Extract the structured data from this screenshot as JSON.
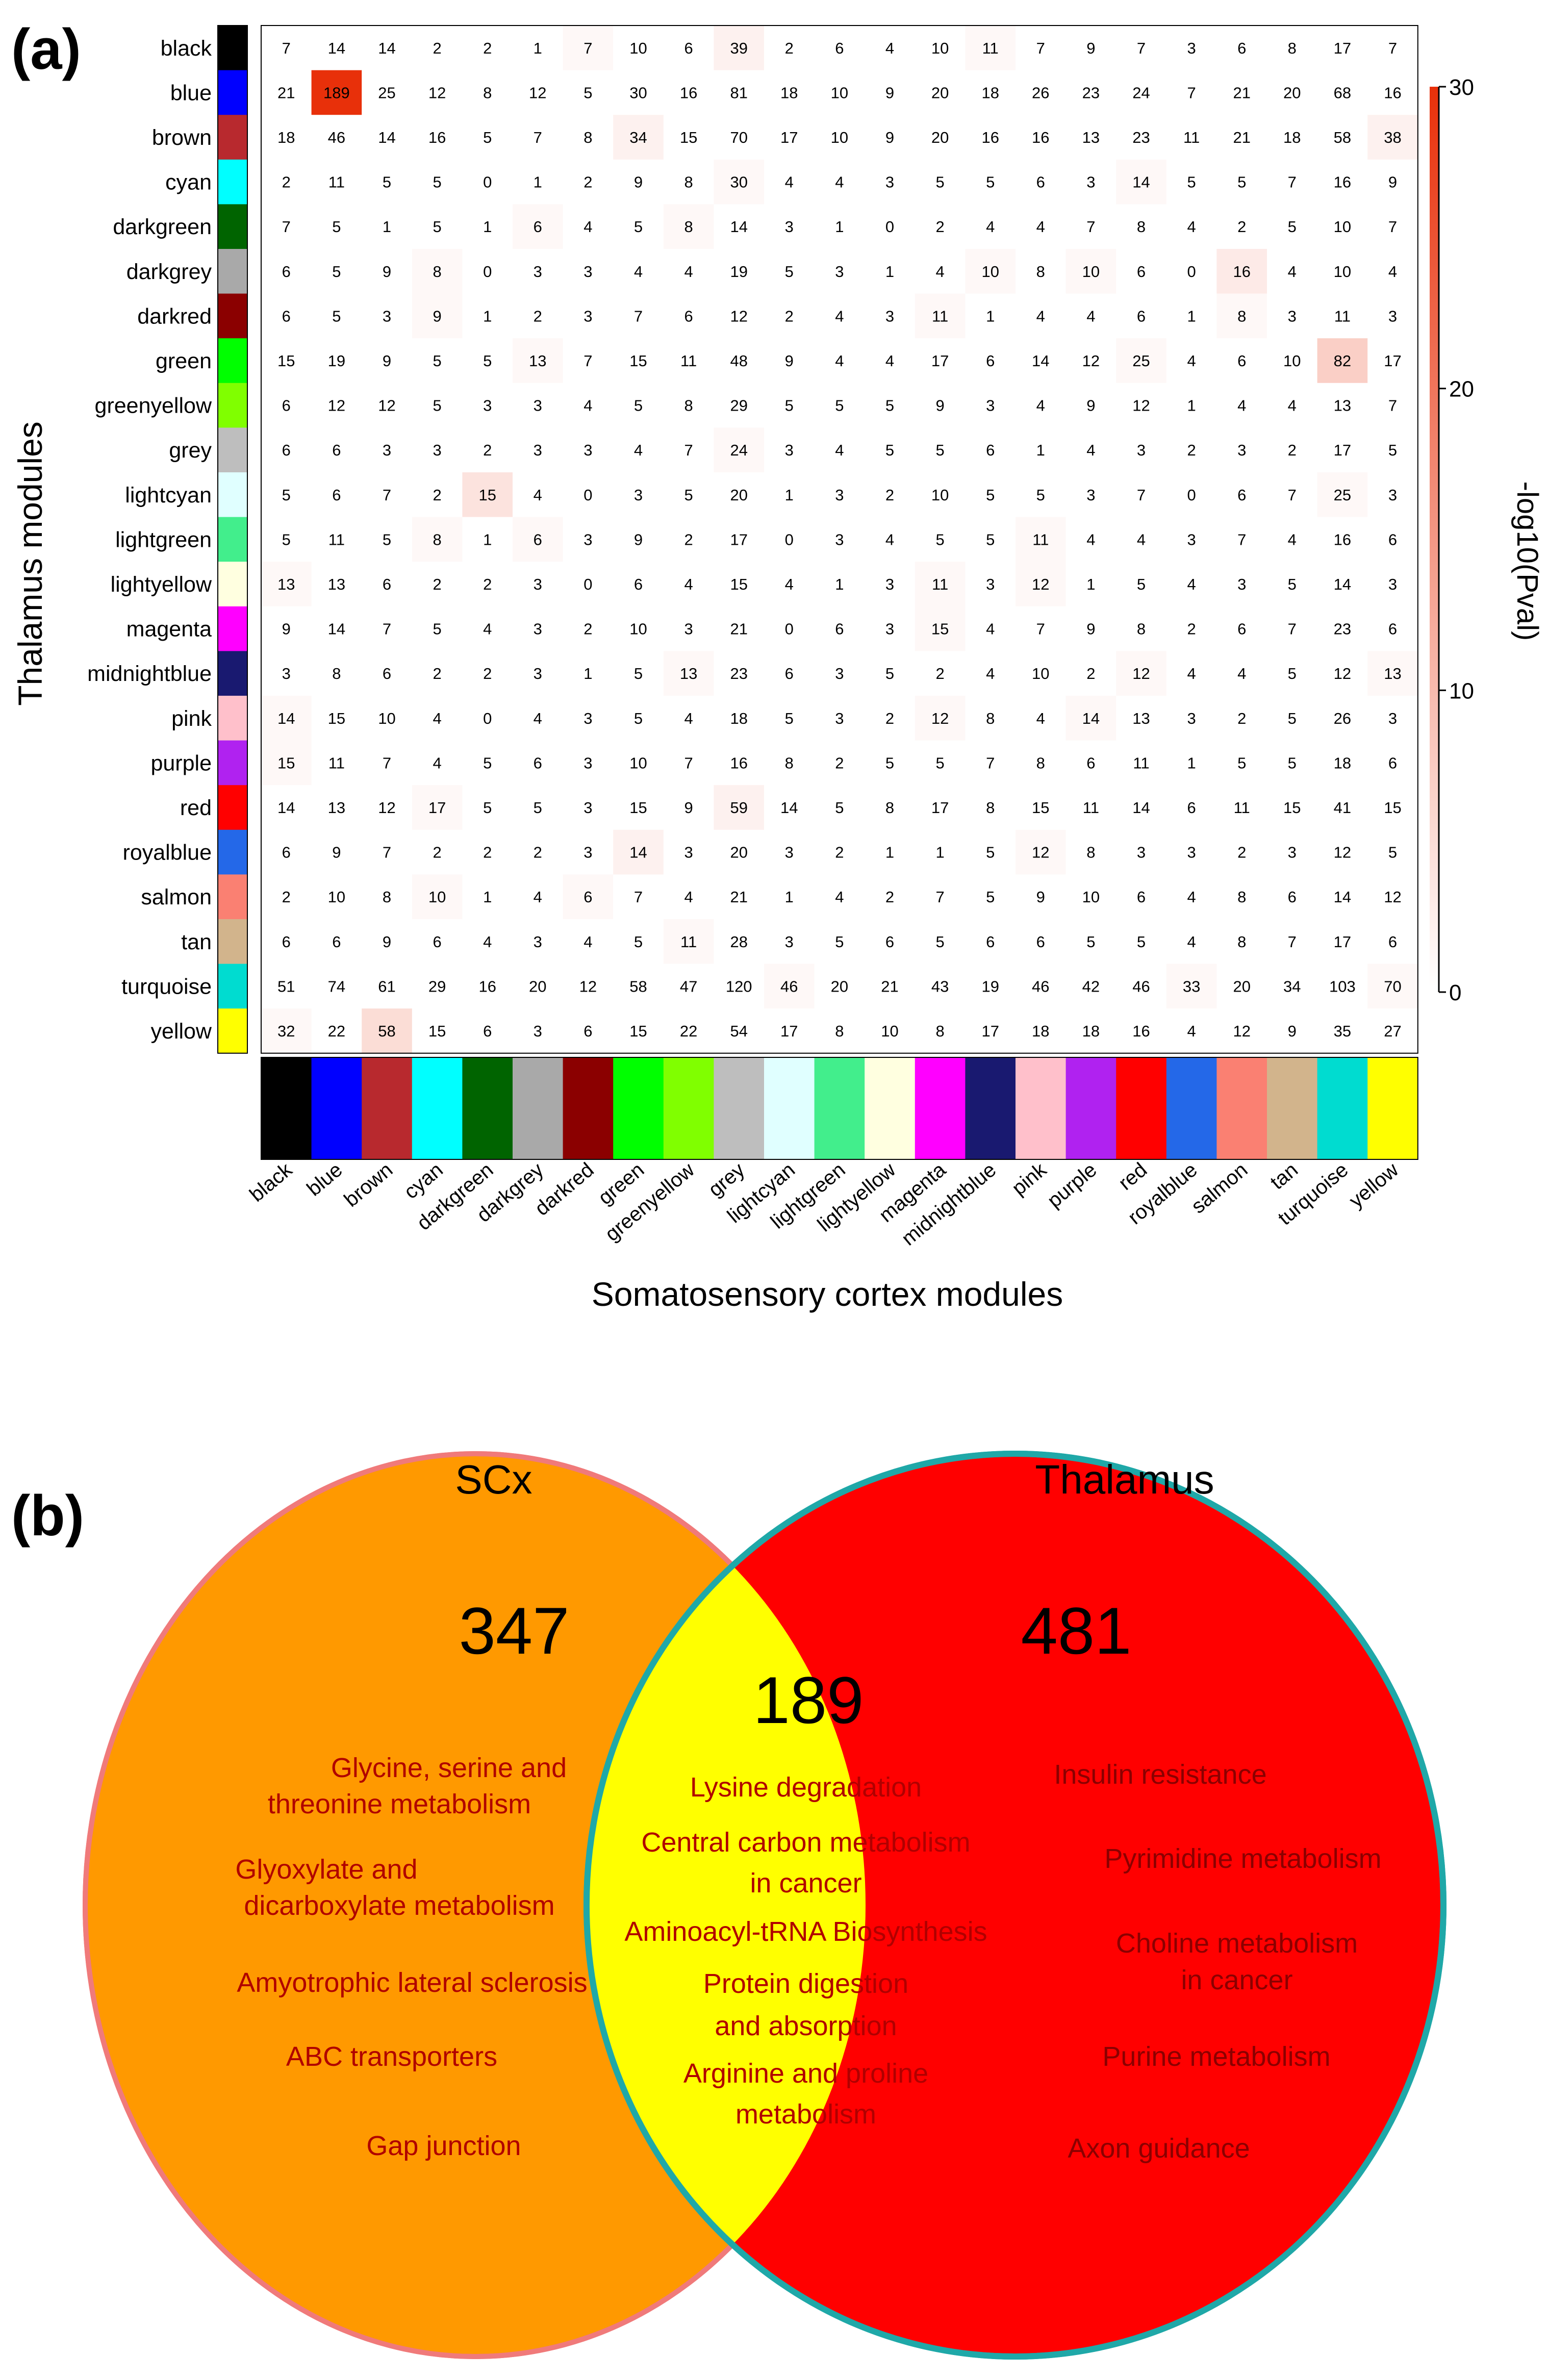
{
  "panel_a_label": "(a)",
  "panel_b_label": "(b)",
  "chart_data": [
    {
      "type": "heatmap",
      "ylabel": "Thalamus modules",
      "xlabel": "Somatosensory cortex modules",
      "colorbar": {
        "label": "-log10(Pval)",
        "ticks": [
          0,
          10,
          20,
          30
        ],
        "range": [
          0,
          30
        ],
        "low_color": "#ffffff",
        "high_color": "#e8300a"
      },
      "row_labels": [
        "black",
        "blue",
        "brown",
        "cyan",
        "darkgreen",
        "darkgrey",
        "darkred",
        "green",
        "greenyellow",
        "grey",
        "lightcyan",
        "lightgreen",
        "lightyellow",
        "magenta",
        "midnightblue",
        "pink",
        "purple",
        "red",
        "royalblue",
        "salmon",
        "tan",
        "turquoise",
        "yellow"
      ],
      "col_labels": [
        "black",
        "blue",
        "brown",
        "cyan",
        "darkgreen",
        "darkgrey",
        "darkred",
        "green",
        "greenyellow",
        "grey",
        "lightcyan",
        "lightgreen",
        "lightyellow",
        "magenta",
        "midnightblue",
        "pink",
        "purple",
        "red",
        "royalblue",
        "salmon",
        "tan",
        "turquoise",
        "yellow"
      ],
      "module_colors": {
        "black": "#000000",
        "blue": "#0000ff",
        "brown": "#b8292e",
        "cyan": "#00ffff",
        "darkgreen": "#006400",
        "darkgrey": "#a9a9a9",
        "darkred": "#8b0000",
        "green": "#00ff00",
        "greenyellow": "#80ff00",
        "grey": "#bebebe",
        "lightcyan": "#e0ffff",
        "lightgreen": "#42ee8c",
        "lightyellow": "#ffffe0",
        "magenta": "#ff00ff",
        "midnightblue": "#191970",
        "pink": "#ffc0cb",
        "purple": "#b022f0",
        "red": "#ff0000",
        "royalblue": "#2468e8",
        "salmon": "#fa8072",
        "tan": "#d2b48c",
        "turquoise": "#00dcd0",
        "yellow": "#ffff00"
      },
      "counts": [
        [
          7,
          14,
          14,
          2,
          2,
          1,
          7,
          10,
          6,
          39,
          2,
          6,
          4,
          10,
          11,
          7,
          9,
          7,
          3,
          6,
          8,
          17,
          7
        ],
        [
          21,
          189,
          25,
          12,
          8,
          12,
          5,
          30,
          16,
          81,
          18,
          10,
          9,
          20,
          18,
          26,
          23,
          24,
          7,
          21,
          20,
          68,
          16
        ],
        [
          18,
          46,
          14,
          16,
          5,
          7,
          8,
          34,
          15,
          70,
          17,
          10,
          9,
          20,
          16,
          16,
          13,
          23,
          11,
          21,
          18,
          58,
          38
        ],
        [
          2,
          11,
          5,
          5,
          0,
          1,
          2,
          9,
          8,
          30,
          4,
          4,
          3,
          5,
          5,
          6,
          3,
          14,
          5,
          5,
          7,
          16,
          9
        ],
        [
          7,
          5,
          1,
          5,
          1,
          6,
          4,
          5,
          8,
          14,
          3,
          1,
          0,
          2,
          4,
          4,
          7,
          8,
          4,
          2,
          5,
          10,
          7
        ],
        [
          6,
          5,
          9,
          8,
          0,
          3,
          3,
          4,
          4,
          19,
          5,
          3,
          1,
          4,
          10,
          8,
          10,
          6,
          0,
          16,
          4,
          10,
          4
        ],
        [
          6,
          5,
          3,
          9,
          1,
          2,
          3,
          7,
          6,
          12,
          2,
          4,
          3,
          11,
          1,
          4,
          4,
          6,
          1,
          8,
          3,
          11,
          3
        ],
        [
          15,
          19,
          9,
          5,
          5,
          13,
          7,
          15,
          11,
          48,
          9,
          4,
          4,
          17,
          6,
          14,
          12,
          25,
          4,
          6,
          10,
          82,
          17
        ],
        [
          6,
          12,
          12,
          5,
          3,
          3,
          4,
          5,
          8,
          29,
          5,
          5,
          5,
          9,
          3,
          4,
          9,
          12,
          1,
          4,
          4,
          13,
          7
        ],
        [
          6,
          6,
          3,
          3,
          2,
          3,
          3,
          4,
          7,
          24,
          3,
          4,
          5,
          5,
          6,
          1,
          4,
          3,
          2,
          3,
          2,
          17,
          5
        ],
        [
          5,
          6,
          7,
          2,
          15,
          4,
          0,
          3,
          5,
          20,
          1,
          3,
          2,
          10,
          5,
          5,
          3,
          7,
          0,
          6,
          7,
          25,
          3
        ],
        [
          5,
          11,
          5,
          8,
          1,
          6,
          3,
          9,
          2,
          17,
          0,
          3,
          4,
          5,
          5,
          11,
          4,
          4,
          3,
          7,
          4,
          16,
          6
        ],
        [
          13,
          13,
          6,
          2,
          2,
          3,
          0,
          6,
          4,
          15,
          4,
          1,
          3,
          11,
          3,
          12,
          1,
          5,
          4,
          3,
          5,
          14,
          3
        ],
        [
          9,
          14,
          7,
          5,
          4,
          3,
          2,
          10,
          3,
          21,
          0,
          6,
          3,
          15,
          4,
          7,
          9,
          8,
          2,
          6,
          7,
          23,
          6
        ],
        [
          3,
          8,
          6,
          2,
          2,
          3,
          1,
          5,
          13,
          23,
          6,
          3,
          5,
          2,
          4,
          10,
          2,
          12,
          4,
          4,
          5,
          12,
          13
        ],
        [
          14,
          15,
          10,
          4,
          0,
          4,
          3,
          5,
          4,
          18,
          5,
          3,
          2,
          12,
          8,
          4,
          14,
          13,
          3,
          2,
          5,
          26,
          3
        ],
        [
          15,
          11,
          7,
          4,
          5,
          6,
          3,
          10,
          7,
          16,
          8,
          2,
          5,
          5,
          7,
          8,
          6,
          11,
          1,
          5,
          5,
          18,
          6
        ],
        [
          14,
          13,
          12,
          17,
          5,
          5,
          3,
          15,
          9,
          59,
          14,
          5,
          8,
          17,
          8,
          15,
          11,
          14,
          6,
          11,
          15,
          41,
          15
        ],
        [
          6,
          9,
          7,
          2,
          2,
          2,
          3,
          14,
          3,
          20,
          3,
          2,
          1,
          1,
          5,
          12,
          8,
          3,
          3,
          2,
          3,
          12,
          5
        ],
        [
          2,
          10,
          8,
          10,
          1,
          4,
          6,
          7,
          4,
          21,
          1,
          4,
          2,
          7,
          5,
          9,
          10,
          6,
          4,
          8,
          6,
          14,
          12
        ],
        [
          6,
          6,
          9,
          6,
          4,
          3,
          4,
          5,
          11,
          28,
          3,
          5,
          6,
          5,
          6,
          6,
          5,
          5,
          4,
          8,
          7,
          17,
          6
        ],
        [
          51,
          74,
          61,
          29,
          16,
          20,
          12,
          58,
          47,
          120,
          46,
          20,
          21,
          43,
          19,
          46,
          42,
          46,
          33,
          20,
          34,
          103,
          70
        ],
        [
          32,
          22,
          58,
          15,
          6,
          3,
          6,
          15,
          22,
          54,
          17,
          8,
          10,
          8,
          17,
          18,
          18,
          16,
          4,
          12,
          9,
          35,
          27
        ]
      ],
      "neg_log10_pval": [
        [
          0,
          0,
          0,
          0,
          0,
          0,
          1,
          0,
          0,
          2,
          0,
          0,
          0,
          0,
          1,
          0,
          0,
          0,
          0,
          0,
          0,
          0,
          0
        ],
        [
          0,
          30,
          0,
          0,
          0,
          0,
          0,
          0,
          0,
          0,
          0,
          0,
          0,
          0,
          0,
          0,
          0,
          0,
          0,
          0,
          0,
          0,
          0
        ],
        [
          0,
          0,
          0,
          0,
          0,
          0,
          0,
          2,
          0,
          0,
          0,
          0,
          0,
          0,
          0,
          0,
          0,
          0,
          0,
          0,
          0,
          0,
          2
        ],
        [
          0,
          0,
          0,
          0,
          0,
          0,
          0,
          0,
          0,
          1,
          0,
          0,
          0,
          0,
          0,
          0,
          0,
          1,
          0,
          0,
          0,
          0,
          0
        ],
        [
          0,
          0,
          0,
          0,
          0,
          1,
          0,
          0,
          1,
          0,
          0,
          0,
          0,
          0,
          0,
          0,
          0,
          0,
          0,
          0,
          0,
          0,
          0
        ],
        [
          0,
          0,
          0,
          1,
          0,
          0,
          0,
          0,
          0,
          0,
          0,
          0,
          0,
          0,
          1,
          0,
          1,
          0,
          0,
          3,
          0,
          0,
          0
        ],
        [
          0,
          0,
          0,
          1,
          0,
          0,
          0,
          0,
          0,
          0,
          0,
          0,
          0,
          1,
          0,
          0,
          0,
          0,
          0,
          1,
          0,
          0,
          0
        ],
        [
          0,
          0,
          0,
          0,
          0,
          1,
          0,
          0,
          0,
          0,
          0,
          0,
          0,
          0,
          0,
          0,
          0,
          1,
          0,
          0,
          0,
          7,
          0
        ],
        [
          0,
          0,
          0,
          0,
          0,
          0,
          0,
          0,
          0,
          0,
          0,
          0,
          0,
          0,
          0,
          0,
          0,
          0,
          0,
          0,
          0,
          0,
          0
        ],
        [
          0,
          0,
          0,
          0,
          0,
          0,
          0,
          0,
          0,
          1,
          0,
          0,
          0,
          0,
          0,
          0,
          0,
          0,
          0,
          0,
          0,
          0,
          0
        ],
        [
          0,
          0,
          0,
          0,
          4,
          0,
          0,
          0,
          0,
          0,
          0,
          0,
          0,
          0,
          0,
          0,
          0,
          0,
          0,
          0,
          0,
          1,
          0
        ],
        [
          0,
          0,
          0,
          1,
          0,
          1,
          0,
          0,
          0,
          0,
          0,
          0,
          0,
          0,
          0,
          1,
          0,
          0,
          0,
          0,
          0,
          0,
          0
        ],
        [
          1,
          0,
          0,
          0,
          0,
          0,
          0,
          0,
          0,
          0,
          0,
          0,
          0,
          1,
          0,
          1,
          0,
          0,
          0,
          0,
          0,
          0,
          0
        ],
        [
          0,
          0,
          0,
          0,
          0,
          0,
          0,
          0,
          0,
          0,
          0,
          0,
          0,
          1,
          0,
          0,
          0,
          0,
          0,
          0,
          0,
          0,
          0
        ],
        [
          0,
          0,
          0,
          0,
          0,
          0,
          0,
          0,
          1,
          0,
          0,
          0,
          0,
          0,
          0,
          0,
          0,
          1,
          0,
          0,
          0,
          0,
          1
        ],
        [
          1,
          0,
          0,
          0,
          0,
          0,
          0,
          0,
          0,
          0,
          0,
          0,
          0,
          1,
          0,
          0,
          1,
          0,
          0,
          0,
          0,
          0,
          0
        ],
        [
          1,
          0,
          0,
          0,
          0,
          0,
          0,
          0,
          0,
          0,
          0,
          0,
          0,
          0,
          0,
          0,
          0,
          0,
          0,
          0,
          0,
          0,
          0
        ],
        [
          0,
          0,
          0,
          1,
          0,
          0,
          0,
          0,
          0,
          2,
          0,
          0,
          0,
          0,
          0,
          0,
          0,
          0,
          0,
          0,
          0,
          0,
          0
        ],
        [
          0,
          0,
          0,
          0,
          0,
          0,
          0,
          2,
          0,
          0,
          0,
          0,
          0,
          0,
          0,
          1,
          0,
          0,
          0,
          0,
          0,
          0,
          0
        ],
        [
          0,
          0,
          0,
          1,
          0,
          0,
          1,
          0,
          0,
          0,
          0,
          0,
          0,
          0,
          0,
          0,
          0,
          0,
          0,
          0,
          0,
          0,
          0
        ],
        [
          0,
          0,
          0,
          0,
          0,
          0,
          0,
          0,
          1,
          0,
          0,
          0,
          0,
          0,
          0,
          0,
          0,
          0,
          0,
          0,
          0,
          0,
          0
        ],
        [
          0,
          0,
          0,
          0,
          0,
          0,
          0,
          0,
          0,
          0,
          1,
          0,
          0,
          0,
          0,
          0,
          0,
          0,
          1,
          0,
          0,
          0,
          1
        ],
        [
          1,
          0,
          5,
          0,
          0,
          0,
          0,
          0,
          0,
          0,
          0,
          0,
          0,
          0,
          0,
          0,
          0,
          0,
          0,
          0,
          0,
          0,
          0
        ]
      ]
    },
    {
      "type": "venn",
      "sets": [
        {
          "name": "SCx",
          "count": "347",
          "fill": "#ff9900",
          "stroke": "#f07a7a",
          "label_color": "#b00000",
          "terms": [
            "Glycine, serine and",
            "threonine metabolism",
            "Glyoxylate and",
            "dicarboxylate metabolism",
            "Amyotrophic lateral sclerosis",
            "ABC transporters",
            "Gap junction"
          ]
        },
        {
          "name": "Thalamus",
          "count": "481",
          "fill": "#ff0000",
          "stroke": "#1fa8a8",
          "label_color": "#8b0000",
          "terms": [
            "Insulin resistance",
            "Pyrimidine metabolism",
            "Choline metabolism",
            "in cancer",
            "Purine metabolism",
            "Axon guidance"
          ]
        }
      ],
      "intersection": {
        "count": "189",
        "fill": "#ffff00",
        "label_color": "#b00000",
        "terms": [
          "Lysine degradation",
          "Central carbon metabolism",
          "in cancer",
          "Aminoacyl-tRNA Biosynthesis",
          "Protein digestion",
          "and absorption",
          "Arginine and proline",
          "metabolism"
        ]
      }
    }
  ]
}
